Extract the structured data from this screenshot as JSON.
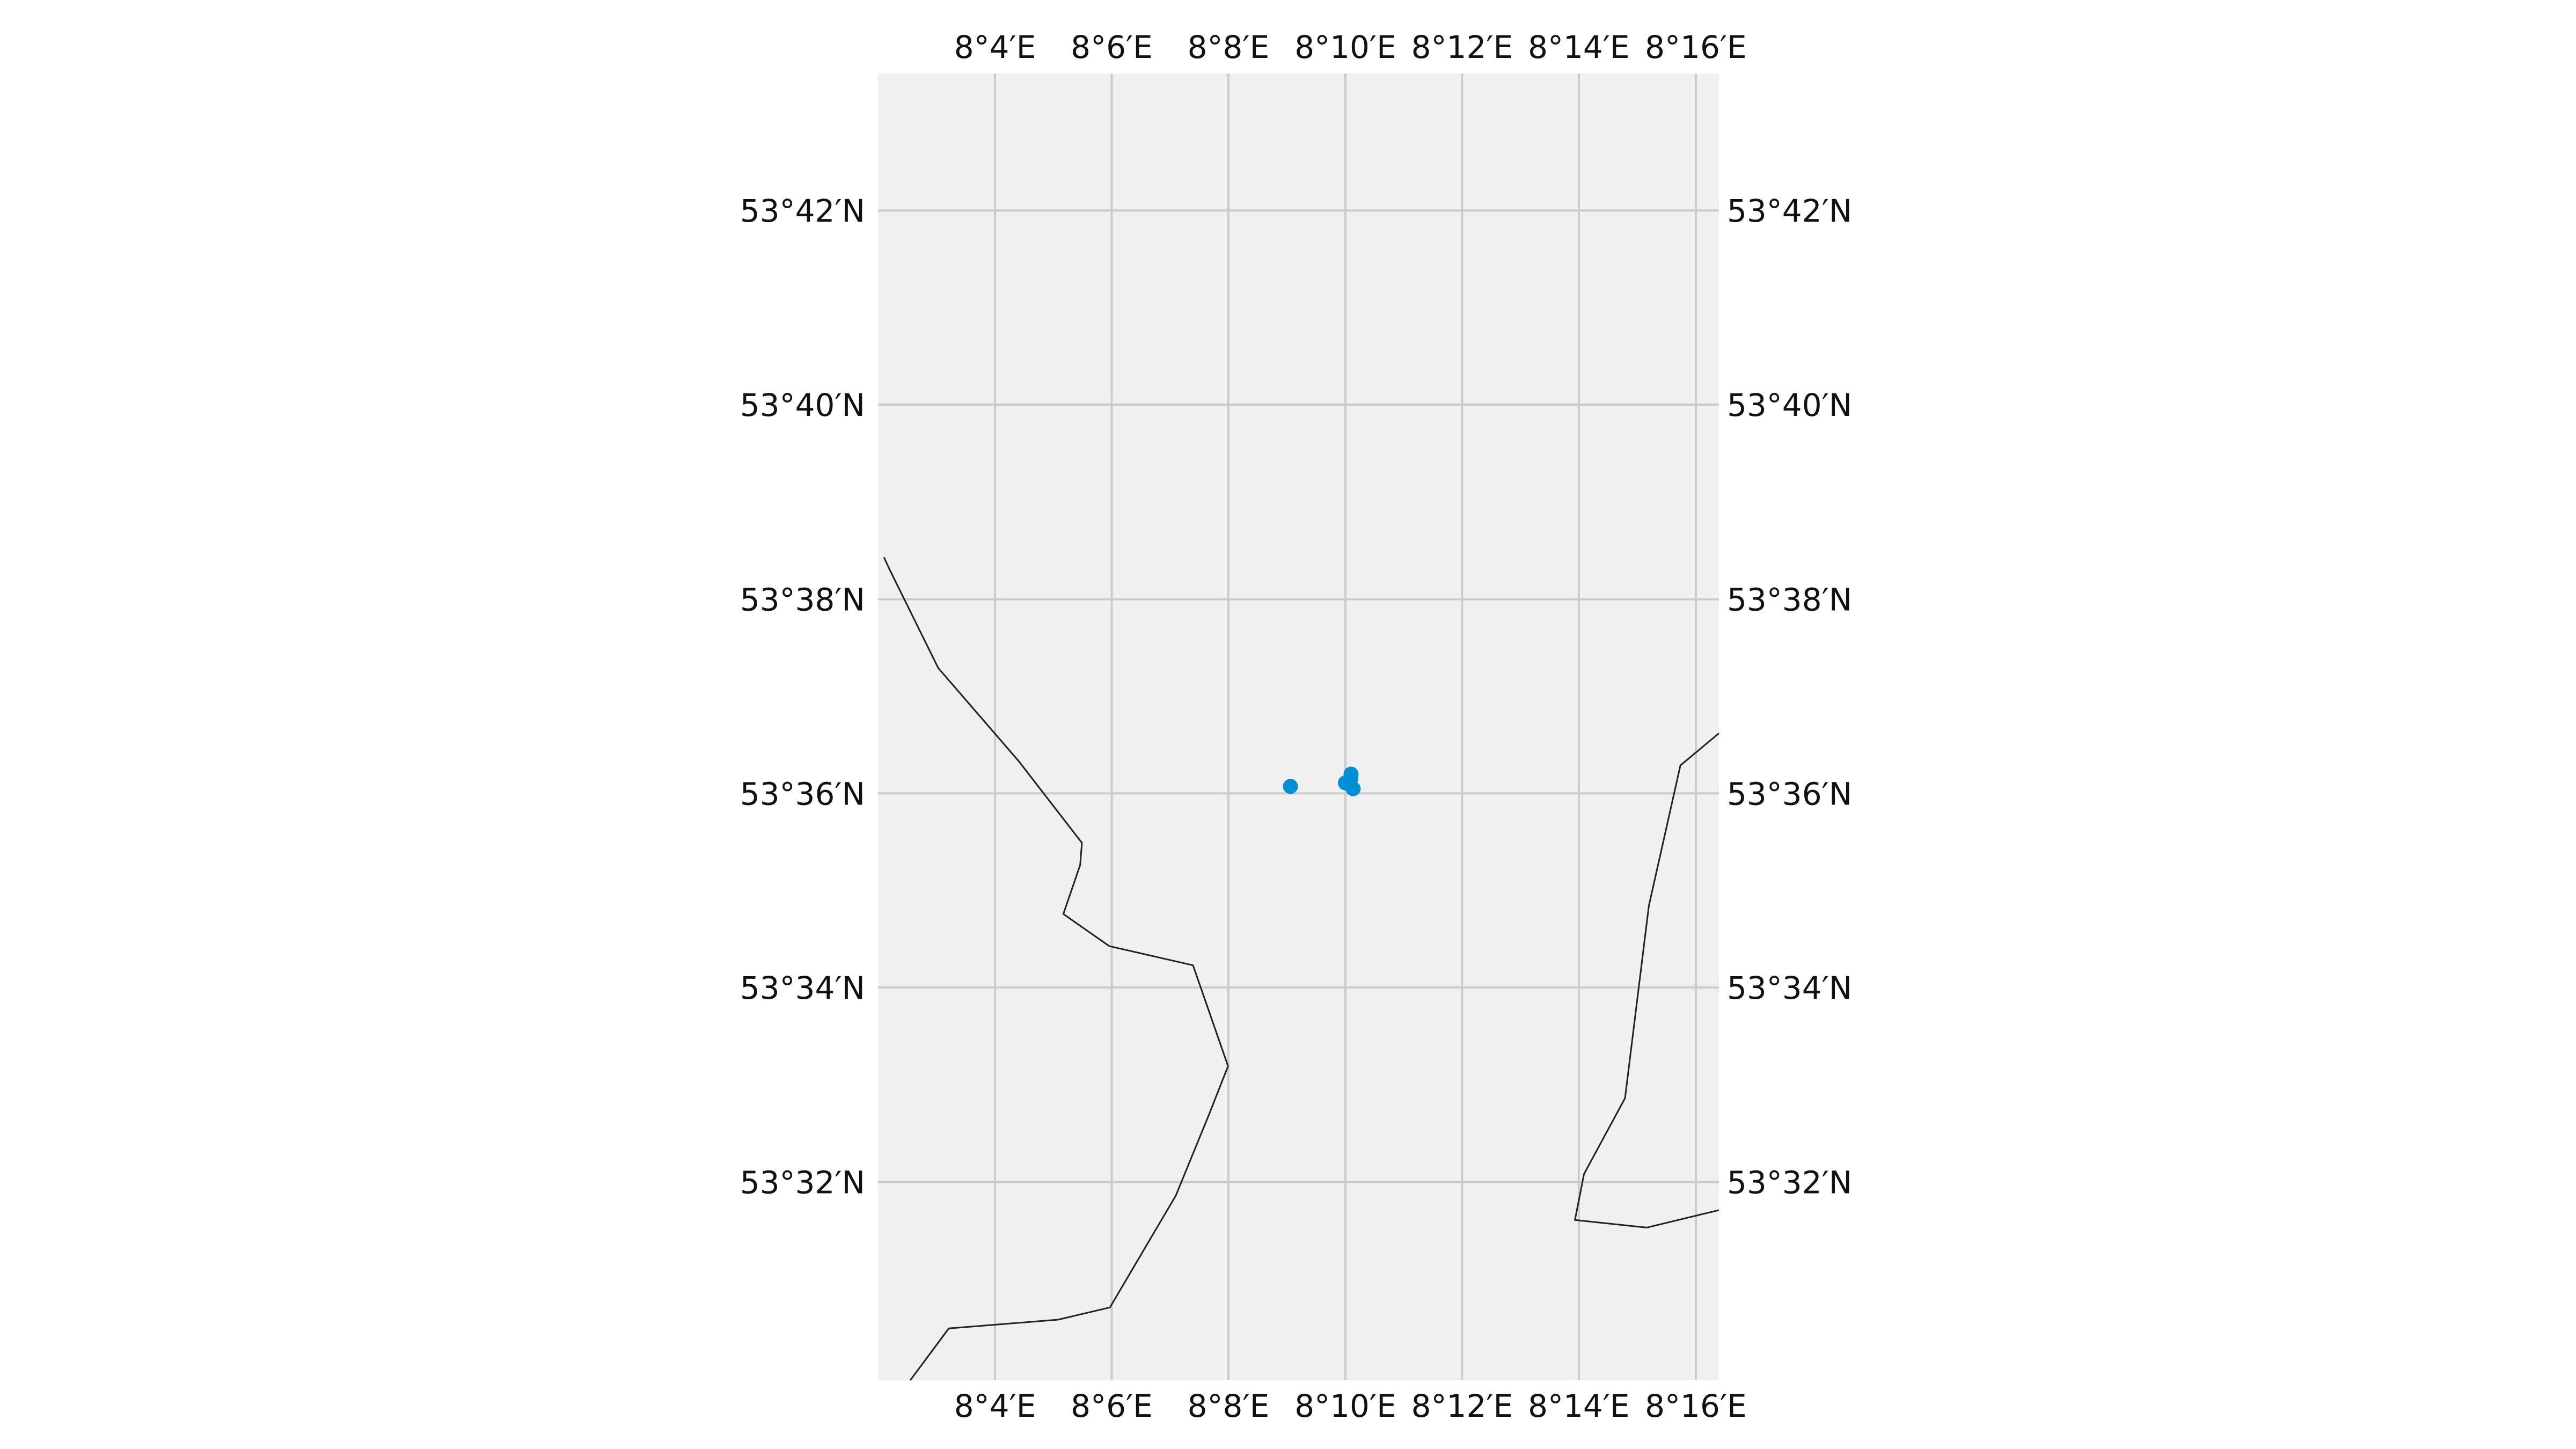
{
  "chart_data": {
    "type": "map",
    "extent": {
      "lon_min": 8.0333,
      "lon_max": 8.2733,
      "lat_min": 53.4993,
      "lat_max": 53.7235
    },
    "colors": {
      "background": "#ffffff",
      "map_area": "#f0f0f0",
      "grid": "#cbcbcb",
      "coastline": "#222222",
      "points": "#008fd5"
    },
    "gridlines": true,
    "gridlines_lon": [
      8.0667,
      8.1,
      8.1333,
      8.1667,
      8.2,
      8.2333,
      8.2667
    ],
    "gridlines_lat": [
      53.5333,
      53.5667,
      53.6,
      53.6333,
      53.6667,
      53.7
    ],
    "x_tick_labels": [
      "8°4′E",
      "8°6′E",
      "8°8′E",
      "8°10′E",
      "8°12′E",
      "8°14′E",
      "8°16′E"
    ],
    "y_tick_labels": [
      "53°32′N",
      "53°34′N",
      "53°36′N",
      "53°38′N",
      "53°40′N",
      "53°42′N"
    ],
    "points": [
      {
        "lon": 8.151,
        "lat": 53.6012
      },
      {
        "lon": 8.1667,
        "lat": 53.6018
      },
      {
        "lon": 8.1683,
        "lat": 53.6033
      },
      {
        "lon": 8.1689,
        "lat": 53.6008
      },
      {
        "lon": 8.1682,
        "lat": 53.6025
      }
    ],
    "coastlines": [
      [
        [
          8.035,
          53.6405
        ],
        [
          8.0367,
          53.6383
        ],
        [
          8.0505,
          53.6215
        ],
        [
          8.0735,
          53.6055
        ],
        [
          8.0915,
          53.5915
        ],
        [
          8.091,
          53.5877
        ],
        [
          8.0862,
          53.5793
        ],
        [
          8.0993,
          53.5738
        ],
        [
          8.1232,
          53.5705
        ],
        [
          8.1332,
          53.5532
        ],
        [
          8.1277,
          53.5448
        ],
        [
          8.1183,
          53.531
        ],
        [
          8.0995,
          53.5118
        ],
        [
          8.0847,
          53.5097
        ],
        [
          8.0535,
          53.5082
        ],
        [
          8.0425,
          53.4993
        ]
      ],
      [
        [
          8.2733,
          53.6103
        ],
        [
          8.2623,
          53.6048
        ],
        [
          8.2533,
          53.5807
        ],
        [
          8.2465,
          53.5477
        ],
        [
          8.2348,
          53.5347
        ],
        [
          8.2322,
          53.5268
        ],
        [
          8.2527,
          53.5255
        ],
        [
          8.2733,
          53.5285
        ]
      ]
    ]
  }
}
